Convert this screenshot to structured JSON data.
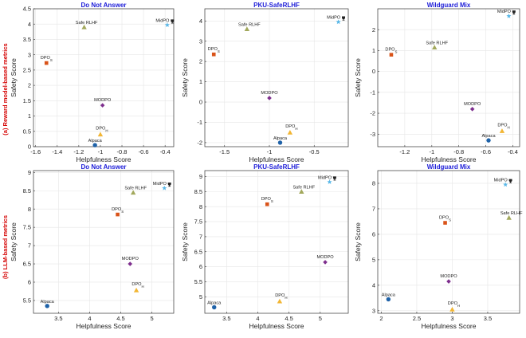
{
  "colors": {
    "title": "#1b1bd8",
    "row_label": "#d40000",
    "Alpaca": "#1f62a8",
    "DPO_H": "#f2b634",
    "MODPO": "#7e2f8e",
    "DPO_S": "#d95319",
    "Safe RLHF": "#a2a85c",
    "MidPO": "#5ab8e8"
  },
  "row_labels": [
    "(a) Reward model-based metrics",
    "(b) LLM-based metrics"
  ],
  "marker_legend": {
    "Alpaca": "circle",
    "DPO_H": "triangle",
    "MODPO": "diamond",
    "DPO_S": "square",
    "Safe RLHF": "triangle",
    "MidPO": "star"
  },
  "chart_data": [
    {
      "type": "scatter",
      "title": "Do Not Answer",
      "xlabel": "Helpfulness Score",
      "ylabel": "Safety Score",
      "xlim": [
        -1.62,
        -0.32
      ],
      "ylim": [
        0.0,
        4.5
      ],
      "xticks": [
        "-1.6",
        "-1.4",
        "-1.2",
        "-1",
        "-0.8",
        "-0.6",
        "-0.4"
      ],
      "xtick_values": [
        -1.6,
        -1.4,
        -1.2,
        -1.0,
        -0.8,
        -0.6,
        -0.4
      ],
      "yticks": [
        "0",
        "0.5",
        "1",
        "1.5",
        "2",
        "2.5",
        "3",
        "3.5",
        "4",
        "4.5"
      ],
      "ytick_values": [
        0,
        0.5,
        1,
        1.5,
        2,
        2.5,
        3,
        3.5,
        4,
        4.5
      ],
      "grid": true,
      "points": [
        {
          "name": "Alpaca",
          "label": "Alpaca",
          "sub": "",
          "x": -1.05,
          "y": 0.05
        },
        {
          "name": "DPO_H",
          "label": "DPO",
          "sub": "H",
          "x": -1.0,
          "y": 0.4
        },
        {
          "name": "MODPO",
          "label": "MODPO",
          "sub": "",
          "x": -0.98,
          "y": 1.35
        },
        {
          "name": "DPO_S",
          "label": "DPO",
          "sub": "S",
          "x": -1.5,
          "y": 2.73
        },
        {
          "name": "Safe RLHF",
          "label": "Safe RLHF",
          "sub": "",
          "x": -1.15,
          "y": 3.9
        },
        {
          "name": "MidPO",
          "label": "MidPO",
          "sub": "",
          "x": -0.38,
          "y": 3.97
        }
      ]
    },
    {
      "type": "scatter",
      "title": "PKU-SafeRLHF",
      "xlabel": "Helpfulness Score",
      "ylabel": "Safety Score",
      "xlim": [
        -1.72,
        -0.12
      ],
      "ylim": [
        -2.2,
        4.6
      ],
      "xticks": [
        "-1.5",
        "-1",
        "-0.5"
      ],
      "xtick_values": [
        -1.5,
        -1.0,
        -0.5
      ],
      "yticks": [
        "-2",
        "-1",
        "0",
        "1",
        "2",
        "3",
        "4"
      ],
      "ytick_values": [
        -2,
        -1,
        0,
        1,
        2,
        3,
        4
      ],
      "grid": true,
      "points": [
        {
          "name": "Alpaca",
          "label": "Alpaca",
          "sub": "",
          "x": -0.88,
          "y": -2.0
        },
        {
          "name": "DPO_H",
          "label": "DPO",
          "sub": "H",
          "x": -0.77,
          "y": -1.5
        },
        {
          "name": "MODPO",
          "label": "MODPO",
          "sub": "",
          "x": -1.0,
          "y": 0.2
        },
        {
          "name": "DPO_S",
          "label": "DPO",
          "sub": "S",
          "x": -1.62,
          "y": 2.35
        },
        {
          "name": "Safe RLHF",
          "label": "Safe RLHF",
          "sub": "",
          "x": -1.25,
          "y": 3.6
        },
        {
          "name": "MidPO",
          "label": "MidPO",
          "sub": "",
          "x": -0.23,
          "y": 3.95
        }
      ]
    },
    {
      "type": "scatter",
      "title": "Wildguard Mix",
      "xlabel": "Helpfulness Score",
      "ylabel": "Safety Score",
      "xlim": [
        -1.4,
        -0.35
      ],
      "ylim": [
        -3.6,
        3.0
      ],
      "xticks": [
        "-1.2",
        "-1",
        "-0.8",
        "-0.6",
        "-0.4"
      ],
      "xtick_values": [
        -1.2,
        -1.0,
        -0.8,
        -0.6,
        -0.4
      ],
      "yticks": [
        "-3",
        "-2",
        "-1",
        "0",
        "1",
        "2"
      ],
      "ytick_values": [
        -3,
        -2,
        -1,
        0,
        1,
        2
      ],
      "grid": true,
      "points": [
        {
          "name": "Alpaca",
          "label": "Alpaca",
          "sub": "",
          "x": -0.58,
          "y": -3.3
        },
        {
          "name": "DPO_H",
          "label": "DPO",
          "sub": "H",
          "x": -0.48,
          "y": -2.85
        },
        {
          "name": "MODPO",
          "label": "MODPO",
          "sub": "",
          "x": -0.7,
          "y": -1.8
        },
        {
          "name": "DPO_S",
          "label": "DPO",
          "sub": "S",
          "x": -1.3,
          "y": 0.8
        },
        {
          "name": "Safe RLHF",
          "label": "Safe RLHF",
          "sub": "",
          "x": -0.98,
          "y": 1.15
        },
        {
          "name": "MidPO",
          "label": "MidPO",
          "sub": "",
          "x": -0.43,
          "y": 2.65
        }
      ]
    },
    {
      "type": "scatter",
      "title": "Do Not Answer",
      "xlabel": "Helpfulness Score",
      "ylabel": "Safety Score",
      "xlim": [
        3.1,
        5.35
      ],
      "ylim": [
        5.15,
        9.05
      ],
      "xticks": [
        "3.5",
        "4",
        "4.5",
        "5"
      ],
      "xtick_values": [
        3.5,
        4.0,
        4.5,
        5.0
      ],
      "yticks": [
        "5.5",
        "6",
        "6.5",
        "7",
        "7.5",
        "8",
        "8.5",
        "9"
      ],
      "ytick_values": [
        5.5,
        6.0,
        6.5,
        7.0,
        7.5,
        8.0,
        8.5,
        9.0
      ],
      "grid": true,
      "points": [
        {
          "name": "Alpaca",
          "label": "Alpaca",
          "sub": "",
          "x": 3.32,
          "y": 5.35
        },
        {
          "name": "DPO_H",
          "label": "DPO",
          "sub": "H",
          "x": 4.75,
          "y": 5.78
        },
        {
          "name": "MODPO",
          "label": "MODPO",
          "sub": "",
          "x": 4.65,
          "y": 6.5
        },
        {
          "name": "DPO_S",
          "label": "DPO",
          "sub": "S",
          "x": 4.45,
          "y": 7.85
        },
        {
          "name": "Safe RLHF",
          "label": "Safe RLHF",
          "sub": "",
          "x": 4.7,
          "y": 8.45
        },
        {
          "name": "MidPO",
          "label": "MidPO",
          "sub": "",
          "x": 5.2,
          "y": 8.57
        }
      ]
    },
    {
      "type": "scatter",
      "title": "PKU-SafeRLHF",
      "xlabel": "Helpfulness Score",
      "ylabel": "Safety Score",
      "xlim": [
        3.15,
        5.45
      ],
      "ylim": [
        4.45,
        9.2
      ],
      "xticks": [
        "3.5",
        "4",
        "4.5",
        "5"
      ],
      "xtick_values": [
        3.5,
        4.0,
        4.5,
        5.0
      ],
      "yticks": [
        "5",
        "5.5",
        "6",
        "6.5",
        "7",
        "7.5",
        "8",
        "8.5",
        "9"
      ],
      "ytick_values": [
        5.0,
        5.5,
        6.0,
        6.5,
        7.0,
        7.5,
        8.0,
        8.5,
        9.0
      ],
      "grid": true,
      "points": [
        {
          "name": "Alpaca",
          "label": "Alpaca",
          "sub": "",
          "x": 3.3,
          "y": 4.65
        },
        {
          "name": "DPO_H",
          "label": "DPO",
          "sub": "H",
          "x": 4.35,
          "y": 4.85
        },
        {
          "name": "MODPO",
          "label": "MODPO",
          "sub": "",
          "x": 5.08,
          "y": 6.15
        },
        {
          "name": "DPO_S",
          "label": "DPO",
          "sub": "S",
          "x": 4.15,
          "y": 8.08
        },
        {
          "name": "Safe RLHF",
          "label": "Safe RLHF",
          "sub": "",
          "x": 4.7,
          "y": 8.5
        },
        {
          "name": "MidPO",
          "label": "MidPO",
          "sub": "",
          "x": 5.15,
          "y": 8.82
        }
      ]
    },
    {
      "type": "scatter",
      "title": "Wildguard Mix",
      "xlabel": "Helpfulness Score",
      "ylabel": "Safety Score",
      "xlim": [
        1.95,
        3.95
      ],
      "ylim": [
        2.9,
        8.5
      ],
      "xticks": [
        "2",
        "2.5",
        "3",
        "3.5"
      ],
      "xtick_values": [
        2.0,
        2.5,
        3.0,
        3.5
      ],
      "yticks": [
        "3",
        "4",
        "5",
        "6",
        "7",
        "8"
      ],
      "ytick_values": [
        3,
        4,
        5,
        6,
        7,
        8
      ],
      "grid": true,
      "points": [
        {
          "name": "Alpaca",
          "label": "Alpaca",
          "sub": "",
          "x": 2.1,
          "y": 3.45
        },
        {
          "name": "DPO_H",
          "label": "DPO",
          "sub": "H",
          "x": 3.0,
          "y": 3.05
        },
        {
          "name": "MODPO",
          "label": "MODPO",
          "sub": "",
          "x": 2.95,
          "y": 4.15
        },
        {
          "name": "DPO_S",
          "label": "DPO",
          "sub": "S",
          "x": 2.9,
          "y": 6.45
        },
        {
          "name": "Safe RLHF",
          "label": "Safe RLHF",
          "sub": "",
          "x": 3.8,
          "y": 6.65
        },
        {
          "name": "MidPO",
          "label": "MidPO",
          "sub": "",
          "x": 3.75,
          "y": 7.95
        }
      ]
    }
  ]
}
